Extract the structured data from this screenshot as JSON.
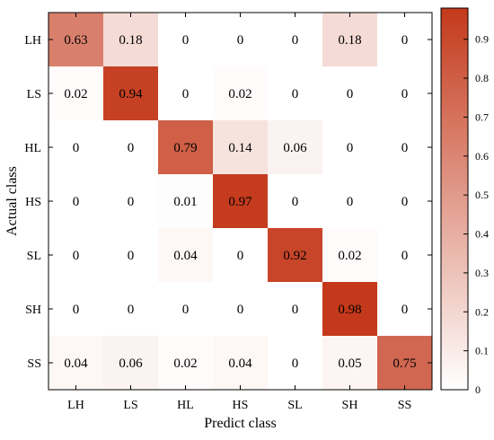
{
  "chart_data": {
    "type": "heatmap",
    "title": "",
    "xlabel": "Predict class",
    "ylabel": "Actual class",
    "x_categories": [
      "LH",
      "LS",
      "HL",
      "HS",
      "SL",
      "SH",
      "SS"
    ],
    "y_categories": [
      "LH",
      "LS",
      "HL",
      "HS",
      "SL",
      "SH",
      "SS"
    ],
    "values": [
      [
        0.63,
        0.18,
        0,
        0,
        0,
        0.18,
        0
      ],
      [
        0.02,
        0.94,
        0,
        0.02,
        0,
        0,
        0
      ],
      [
        0,
        0,
        0.79,
        0.14,
        0.06,
        0,
        0
      ],
      [
        0,
        0,
        0.01,
        0.97,
        0,
        0,
        0
      ],
      [
        0,
        0,
        0.04,
        0,
        0.92,
        0.02,
        0
      ],
      [
        0,
        0,
        0,
        0,
        0,
        0.98,
        0
      ],
      [
        0.04,
        0.06,
        0.02,
        0.04,
        0,
        0.05,
        0.75
      ]
    ],
    "value_labels": [
      [
        "0.63",
        "0.18",
        "0",
        "0",
        "0",
        "0.18",
        "0"
      ],
      [
        "0.02",
        "0.94",
        "0",
        "0.02",
        "0",
        "0",
        "0"
      ],
      [
        "0",
        "0",
        "0.79",
        "0.14",
        "0.06",
        "0",
        "0"
      ],
      [
        "0",
        "0",
        "0.01",
        "0.97",
        "0",
        "0",
        "0"
      ],
      [
        "0",
        "0",
        "0.04",
        "0",
        "0.92",
        "0.02",
        "0"
      ],
      [
        "0",
        "0",
        "0",
        "0",
        "0",
        "0.98",
        "0"
      ],
      [
        "0.04",
        "0.06",
        "0.02",
        "0.04",
        "0",
        "0.05",
        "0.75"
      ]
    ],
    "colorbar": {
      "range": [
        0,
        0.98
      ],
      "ticks": [
        0,
        0.1,
        0.2,
        0.3,
        0.4,
        0.5,
        0.6,
        0.7,
        0.8,
        0.9
      ],
      "tick_labels": [
        "0",
        "0.1",
        "0.2",
        "0.3",
        "0.4",
        "0.5",
        "0.6",
        "0.7",
        "0.8",
        "0.9"
      ]
    },
    "colors": {
      "low": "#ffffff",
      "high": "#c4391b"
    }
  }
}
